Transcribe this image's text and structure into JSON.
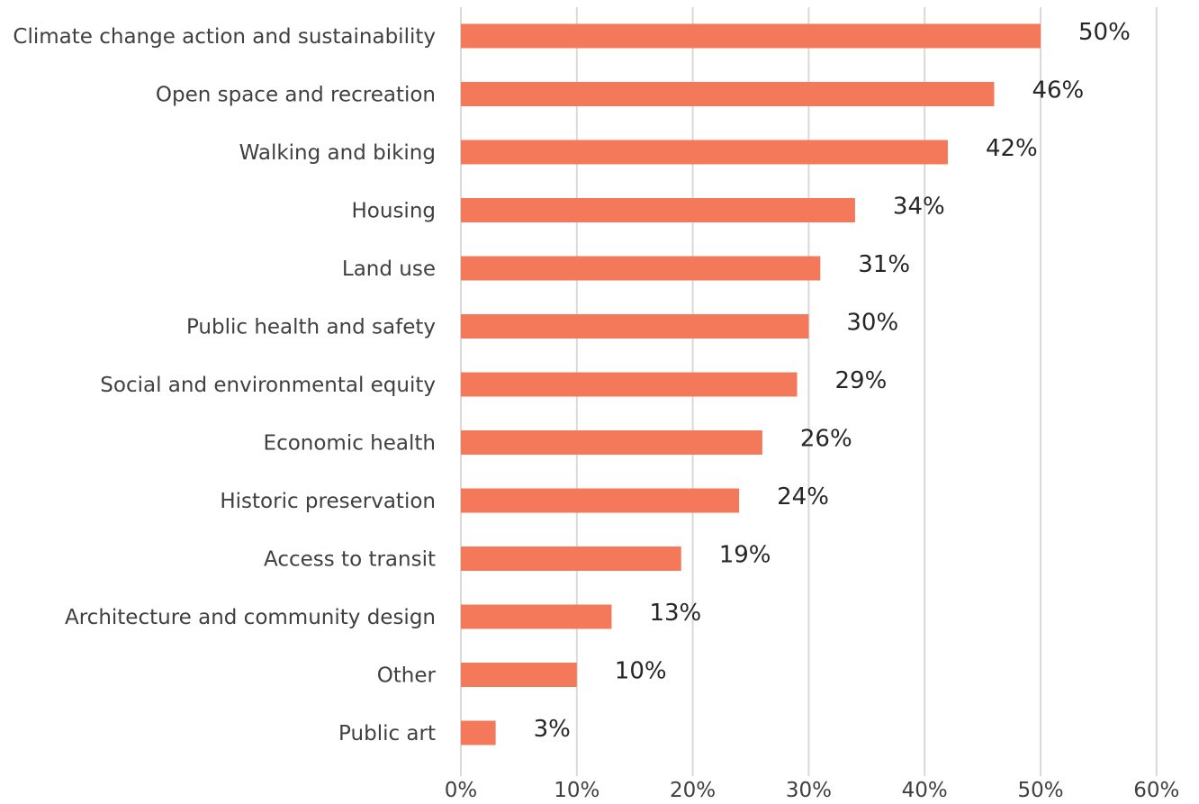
{
  "chart_data": {
    "type": "bar",
    "orientation": "horizontal",
    "title": "",
    "xlabel": "",
    "ylabel": "",
    "xlim": [
      0,
      60
    ],
    "x_ticks": [
      "0%",
      "10%",
      "20%",
      "30%",
      "40%",
      "50%",
      "60%"
    ],
    "grid": true,
    "legend": "none",
    "bar_color": "#f4795b",
    "categories": [
      "Climate change action and sustainability",
      "Open space and recreation",
      "Walking and biking",
      "Housing",
      "Land use",
      "Public health and safety",
      "Social and environmental equity",
      "Economic health",
      "Historic preservation",
      "Access to transit",
      "Architecture and community design",
      "Other",
      "Public art"
    ],
    "values": [
      50,
      46,
      42,
      34,
      31,
      30,
      29,
      26,
      24,
      19,
      13,
      10,
      3
    ],
    "data_labels": [
      "50%",
      "46%",
      "42%",
      "34%",
      "31%",
      "30%",
      "29%",
      "26%",
      "24%",
      "19%",
      "13%",
      "10%",
      "3%"
    ]
  }
}
